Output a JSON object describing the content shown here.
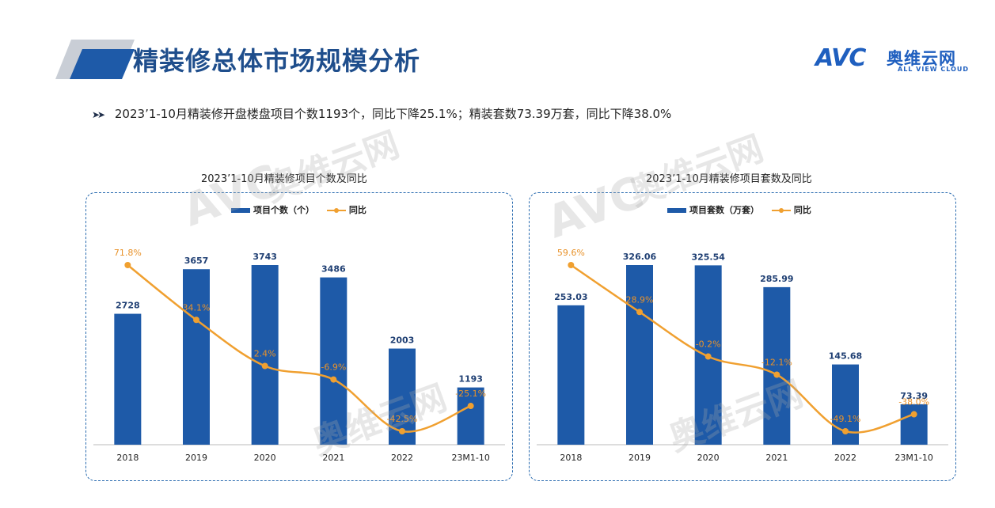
{
  "header": {
    "title": "精装修总体市场规模分析",
    "logo_text": "AVC",
    "logo_cn": "奥维云网",
    "logo_en": "ALL VIEW CLOUD"
  },
  "summary": "2023’1-10月精装修开盘楼盘项目个数1193个，同比下降25.1%；精装套数73.39万套，同比下降38.0%",
  "colors": {
    "bar": "#1e5aa8",
    "line": "#f0a030",
    "title_blue": "#1f4e8c",
    "panel_border": "#2b6cb0"
  },
  "chart_data": [
    {
      "type": "bar",
      "title": "2023’1-10月精装修项目个数及同比",
      "categories": [
        "2018",
        "2019",
        "2020",
        "2021",
        "2022",
        "23M1-10"
      ],
      "series": [
        {
          "name": "项目个数（个）",
          "type": "bar",
          "values": [
            2728,
            3657,
            3743,
            3486,
            2003,
            1193
          ],
          "labels": [
            "2728",
            "3657",
            "3743",
            "3486",
            "2003",
            "1193"
          ]
        },
        {
          "name": "同比",
          "type": "line",
          "values": [
            71.8,
            34.1,
            2.4,
            -6.9,
            -42.5,
            -25.1
          ],
          "labels": [
            "71.8%",
            "34.1%",
            "2.4%",
            "-6.9%",
            "-42.5%",
            "-25.1%"
          ]
        }
      ],
      "legend_position": "top"
    },
    {
      "type": "bar",
      "title": "2023’1-10月精装修项目套数及同比",
      "categories": [
        "2018",
        "2019",
        "2020",
        "2021",
        "2022",
        "23M1-10"
      ],
      "series": [
        {
          "name": "项目套数（万套）",
          "type": "bar",
          "values": [
            253.03,
            326.06,
            325.54,
            285.99,
            145.68,
            73.39
          ],
          "labels": [
            "253.03",
            "326.06",
            "325.54",
            "285.99",
            "145.68",
            "73.39"
          ]
        },
        {
          "name": "同比",
          "type": "line",
          "values": [
            59.6,
            28.9,
            -0.2,
            -12.1,
            -49.1,
            -38.0
          ],
          "labels": [
            "59.6%",
            "28.9%",
            "-0.2%",
            "-12.1%",
            "-49.1%",
            "-38.0%"
          ]
        }
      ],
      "legend_position": "top"
    }
  ]
}
